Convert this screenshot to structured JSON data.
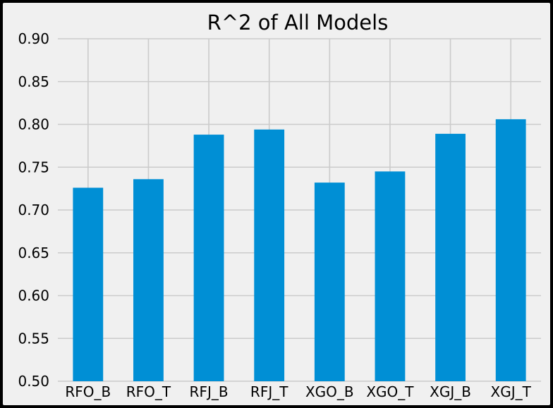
{
  "chart_data": {
    "type": "bar",
    "title": "R^2 of All Models",
    "xlabel": "",
    "ylabel": "",
    "categories": [
      "RFO_B",
      "RFO_T",
      "RFJ_B",
      "RFJ_T",
      "XGO_B",
      "XGO_T",
      "XGJ_B",
      "XGJ_T"
    ],
    "values": [
      0.726,
      0.736,
      0.788,
      0.794,
      0.732,
      0.745,
      0.789,
      0.806
    ],
    "ylim": [
      0.5,
      0.9
    ],
    "yticks": [
      "0.50",
      "0.55",
      "0.60",
      "0.65",
      "0.70",
      "0.75",
      "0.80",
      "0.85",
      "0.90"
    ],
    "grid": true,
    "colors": {
      "bar": "#008fd5",
      "plot_background": "#f0f0f0",
      "figure_background": "#f0f0f0",
      "grid": "#cbcbcb",
      "border": "#000000"
    }
  }
}
